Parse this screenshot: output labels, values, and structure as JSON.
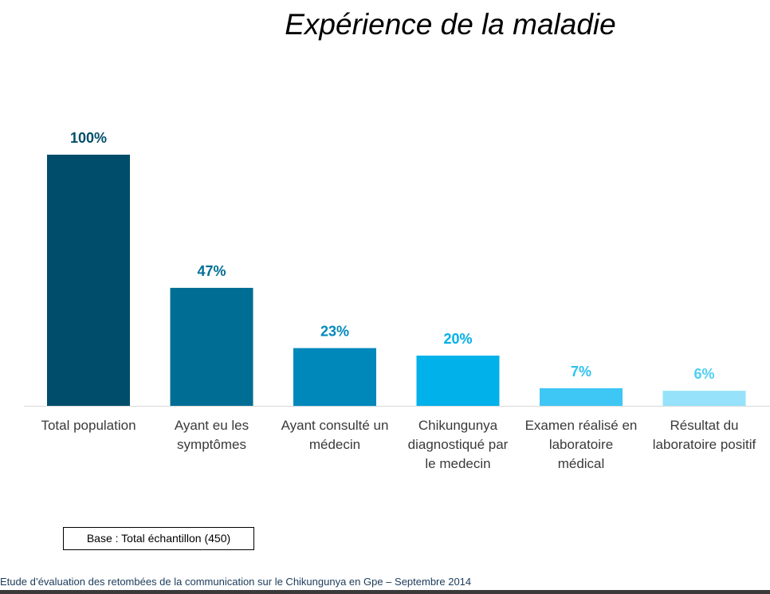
{
  "chart_data": {
    "type": "bar",
    "title": "Expérience de la maladie",
    "categories": [
      "Total population",
      "Ayant eu les symptômes",
      "Ayant consulté un médecin",
      "Chikungunya diagnostiqué par le medecin",
      "Examen réalisé en laboratoire médical",
      "Résultat du laboratoire positif"
    ],
    "category_lines": [
      [
        "Total population"
      ],
      [
        "Ayant eu les",
        "symptômes"
      ],
      [
        "Ayant consulté un",
        "médecin"
      ],
      [
        "Chikungunya",
        "diagnostiqué par",
        "le medecin"
      ],
      [
        "Examen réalisé en",
        "laboratoire",
        "médical"
      ],
      [
        "Résultat du",
        "laboratoire positif"
      ]
    ],
    "values": [
      100,
      47,
      23,
      20,
      7,
      6
    ],
    "value_labels": [
      "100%",
      "47%",
      "23%",
      "20%",
      "7%",
      "6%"
    ],
    "bar_colors": [
      "#004d6b",
      "#006e94",
      "#0088bb",
      "#00b1ea",
      "#3ec6f4",
      "#96e2fb"
    ],
    "label_colors": [
      "#004d6b",
      "#006e94",
      "#0088bb",
      "#00b1ea",
      "#2ec1f1",
      "#4dcff5"
    ],
    "ylim": [
      0,
      100
    ],
    "grid": false,
    "legend": "none"
  },
  "base_note": "Base :  Total échantillon (450)",
  "footer_note": "Etude d’évaluation des retombées de la communication sur le Chikungunya en Gpe – Septembre 2014"
}
